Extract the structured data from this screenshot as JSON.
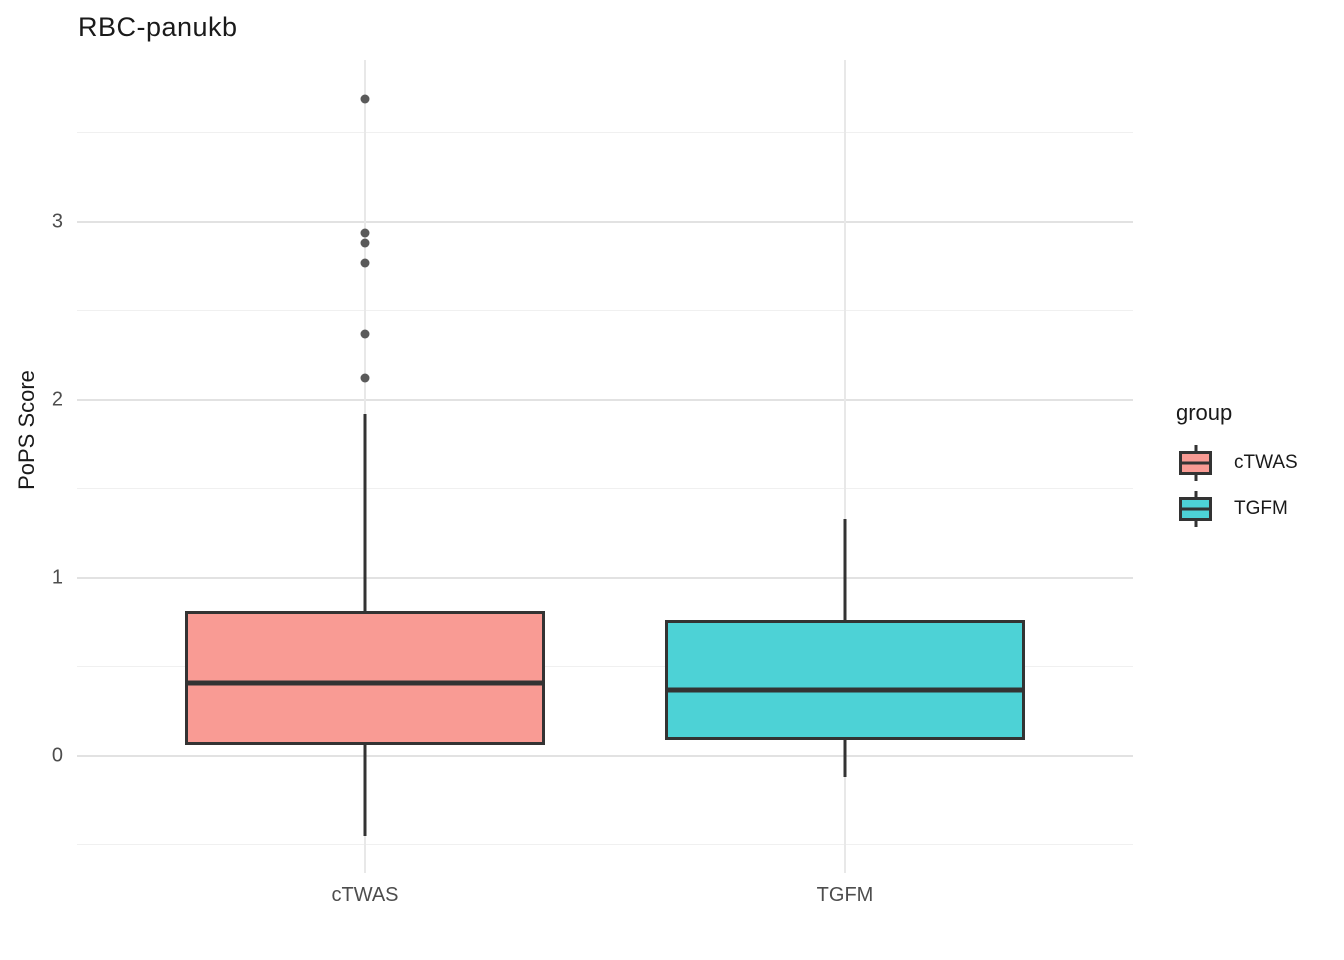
{
  "title": "RBC-panukb",
  "y_axis": {
    "label": "PoPS Score",
    "ticks": [
      0,
      1,
      2,
      3
    ],
    "minor_ticks": [
      -0.5,
      0.5,
      1.5,
      2.5,
      3.5
    ]
  },
  "x_axis": {
    "categories": [
      "cTWAS",
      "TGFM"
    ]
  },
  "legend": {
    "title": "group",
    "entries": [
      {
        "label": "cTWAS",
        "fill": "#F99B94"
      },
      {
        "label": "TGFM",
        "fill": "#4DD2D6"
      }
    ]
  },
  "colors": {
    "box_border": "#333333",
    "median": "#333333",
    "outlier": "#5A5A5A",
    "grid_major": "#E2E2E2",
    "grid_minor": "#F0F0F0",
    "grid_vertical": "#E8E8E8",
    "axis_text": "#4D4D4D",
    "title_text": "#1A1A1A"
  },
  "chart_data": {
    "type": "boxplot",
    "title": "RBC-panukb",
    "xlabel": "",
    "ylabel": "PoPS Score",
    "ylim": [
      -0.66,
      3.91
    ],
    "grid": true,
    "legend_position": "right",
    "legend_title": "group",
    "categories": [
      "cTWAS",
      "TGFM"
    ],
    "series": [
      {
        "name": "cTWAS",
        "fill": "#F99B94",
        "whisker_low": -0.45,
        "q1": 0.06,
        "median": 0.41,
        "q3": 0.81,
        "whisker_high": 1.92,
        "outliers": [
          2.12,
          2.37,
          2.77,
          2.88,
          2.94,
          3.69
        ]
      },
      {
        "name": "TGFM",
        "fill": "#4DD2D6",
        "whisker_low": -0.12,
        "q1": 0.09,
        "median": 0.37,
        "q3": 0.76,
        "whisker_high": 1.33,
        "outliers": []
      }
    ]
  }
}
